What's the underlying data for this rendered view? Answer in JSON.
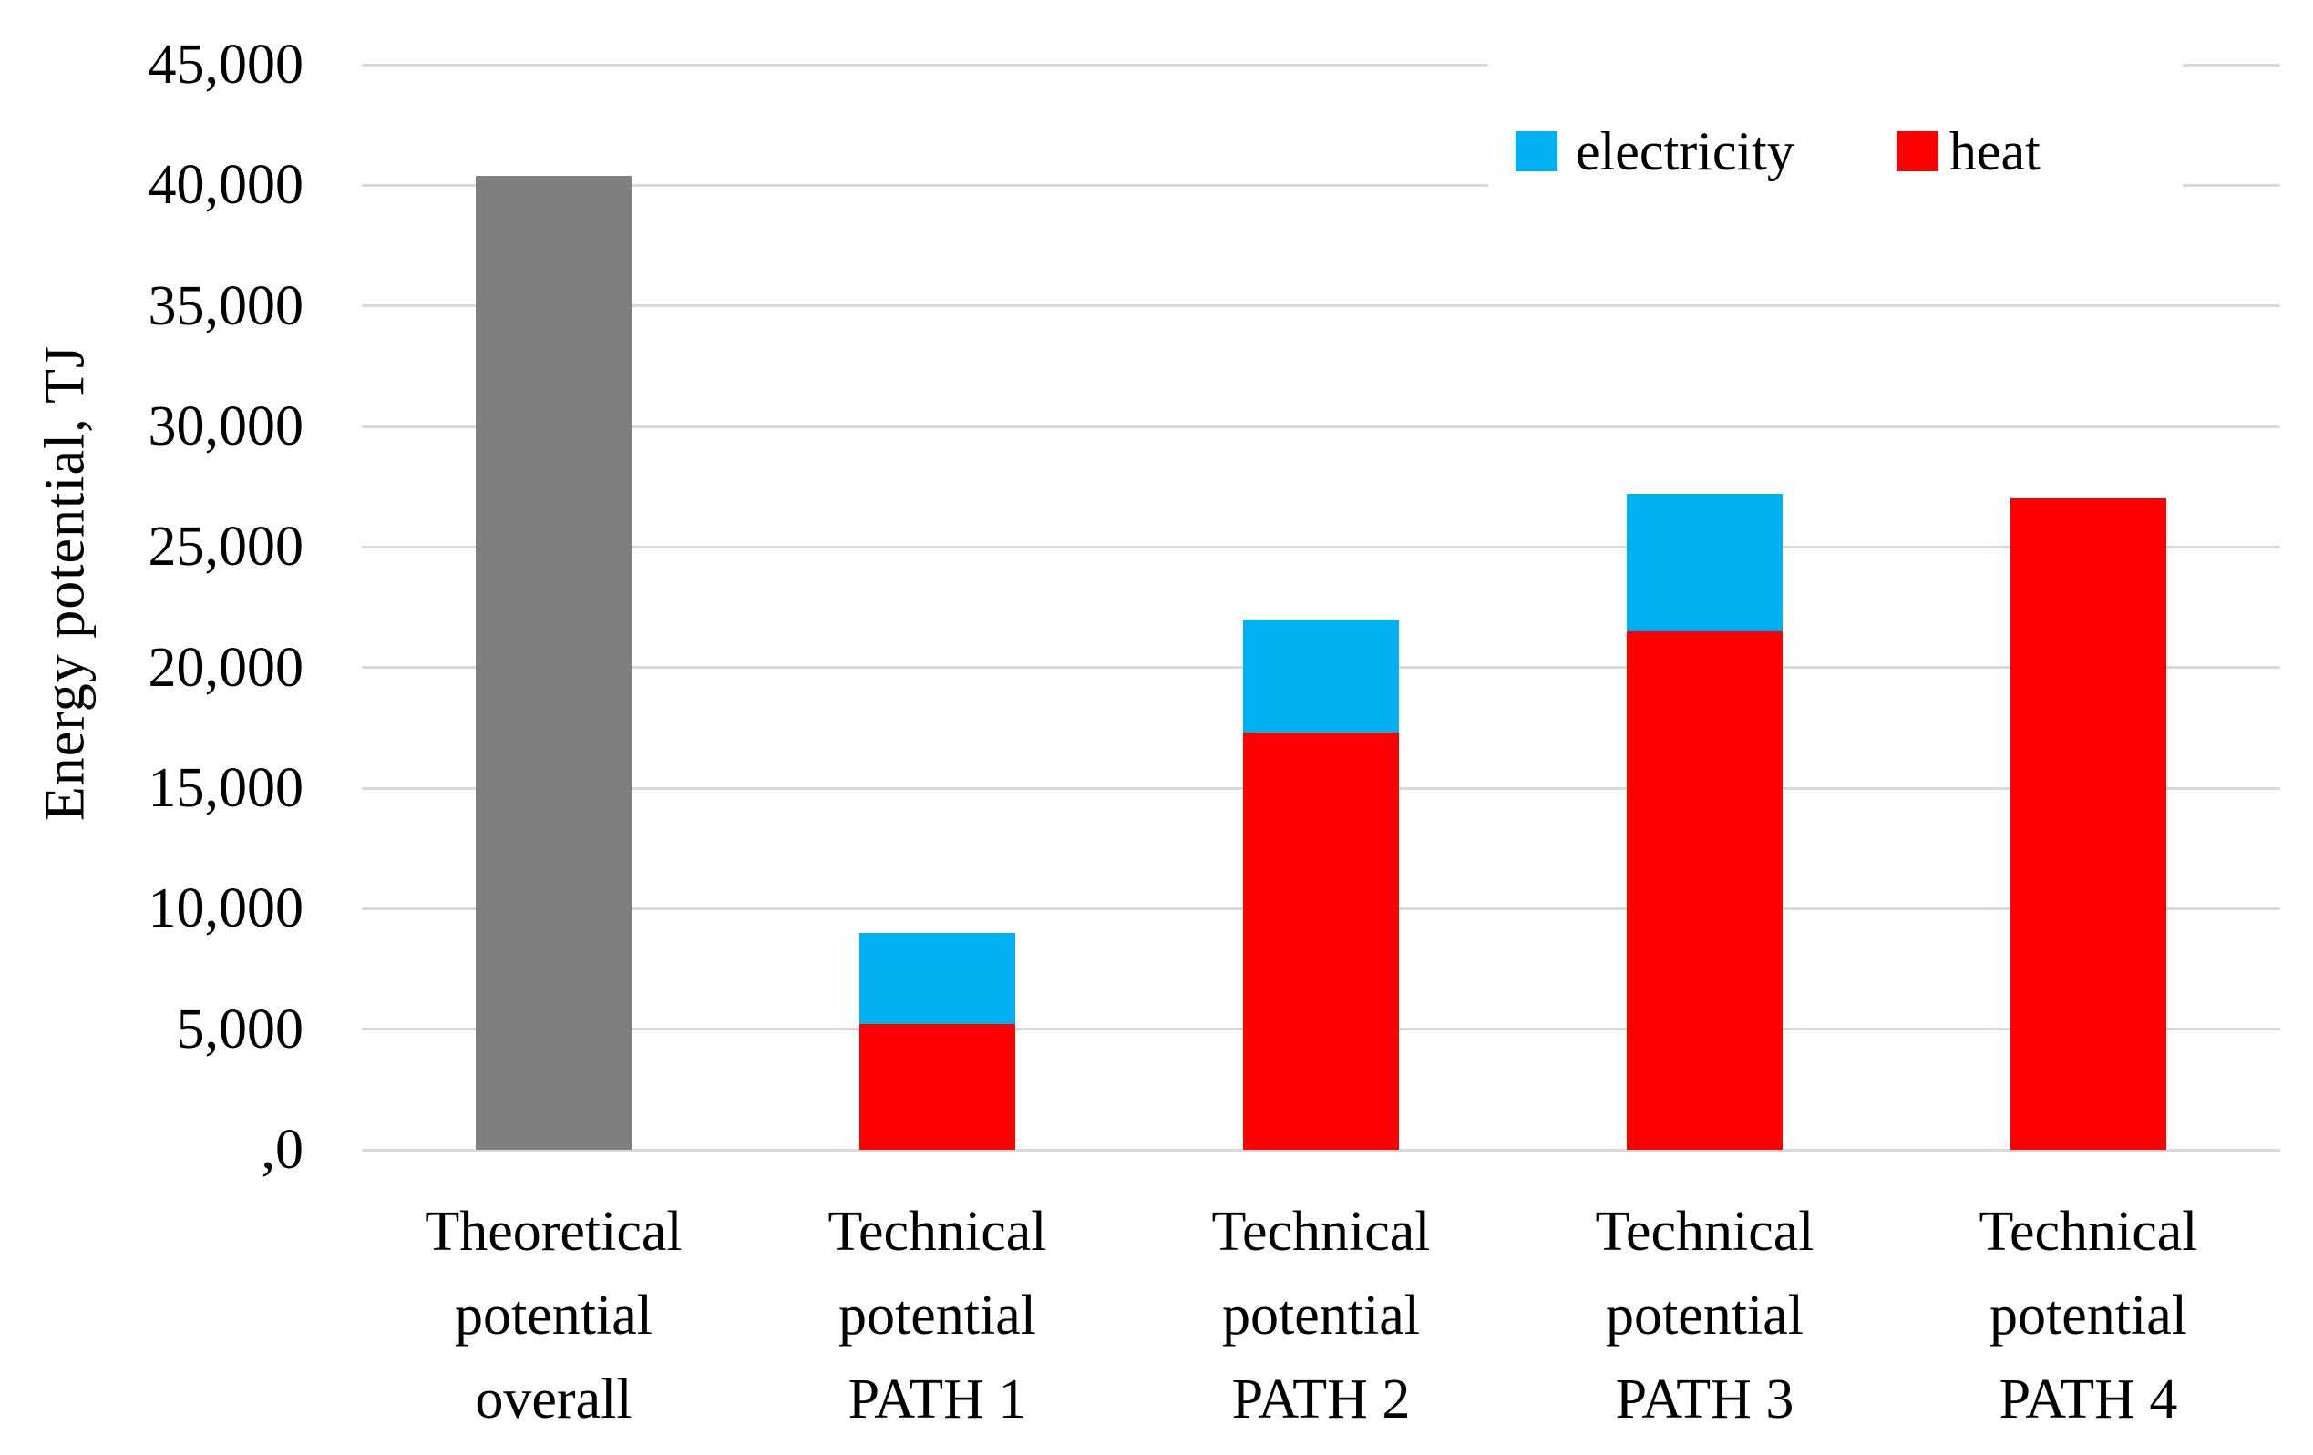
{
  "chart_data": {
    "type": "bar",
    "stacked": true,
    "title": "",
    "xlabel": "",
    "ylabel": "Energy potential, TJ",
    "units": "TJ",
    "ylim": [
      0,
      45000
    ],
    "ytick_step": 5000,
    "ytick_labels": [
      ",0",
      "5,000",
      "10,000",
      "15,000",
      "20,000",
      "25,000",
      "30,000",
      "35,000",
      "40,000",
      "45,000"
    ],
    "grid": true,
    "legend_position": "top-right-inside",
    "categories": [
      "Theoretical\npotential\noverall",
      "Technical\npotential\nPATH 1",
      "Technical\npotential\nPATH 2",
      "Technical\npotential\nPATH 3",
      "Technical\npotential\nPATH 4"
    ],
    "series": [
      {
        "name": "theoretical-overall",
        "label": "",
        "color": "#7F7F7F",
        "in_legend": false,
        "values": [
          40400,
          0,
          0,
          0,
          0
        ]
      },
      {
        "name": "heat",
        "label": "heat",
        "color": "#FF0000",
        "in_legend": true,
        "values": [
          0,
          5200,
          17300,
          21500,
          27000
        ]
      },
      {
        "name": "electricity",
        "label": "electricity",
        "color": "#00B0F0",
        "in_legend": true,
        "values": [
          0,
          3800,
          4700,
          5700,
          0
        ]
      }
    ],
    "legend_items": [
      {
        "name": "electricity",
        "label": "electricity",
        "color": "#00B0F0"
      },
      {
        "name": "heat",
        "label": "heat",
        "color": "#FF0000"
      }
    ]
  },
  "style": {
    "gridline_color": "#D9D9D9",
    "text_color": "#000000",
    "background": "#FFFFFF"
  }
}
